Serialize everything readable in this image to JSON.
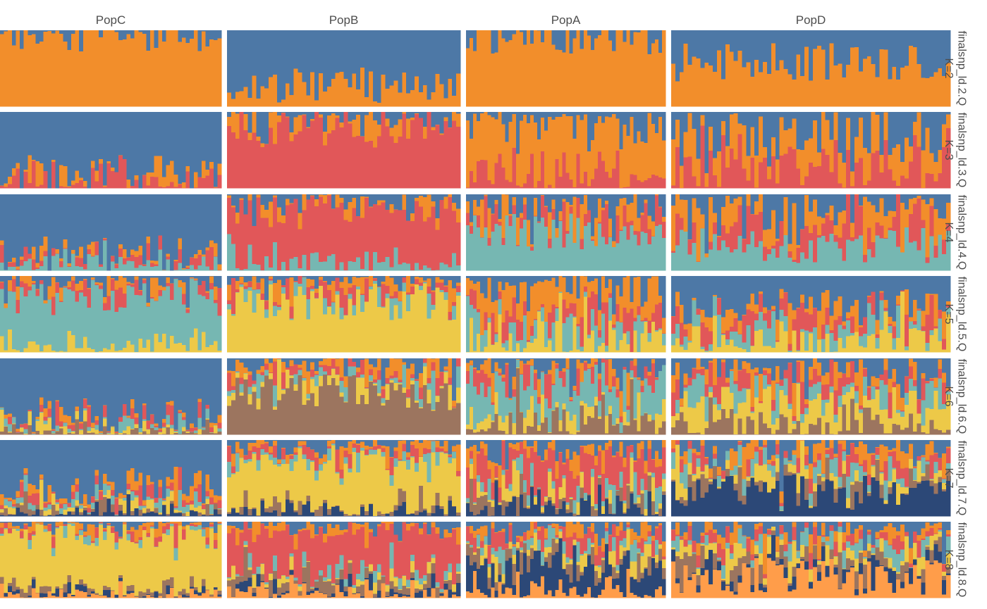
{
  "chart_data": {
    "type": "bar",
    "subtype": "stacked-admixture",
    "populations": [
      "PopC",
      "PopB",
      "PopA",
      "PopD"
    ],
    "individuals_per_population": [
      56,
      56,
      56,
      67
    ],
    "palette": [
      "#4d78a6",
      "#f28e2b",
      "#e15759",
      "#76b7b2",
      "#edc948",
      "#9c755f",
      "#2c4877",
      "#ff9d4a"
    ],
    "rows": [
      {
        "strip_line1": "finalsnp_ld.2.Q",
        "strip_line2": "K=2",
        "K": 2,
        "dominant": [
          [
            1,
            0.93
          ],
          [
            0,
            0.73
          ],
          [
            1,
            0.93
          ],
          [
            1,
            0.58
          ]
        ]
      },
      {
        "strip_line1": "finalsnp_ld.3.Q",
        "strip_line2": "K=3",
        "K": 3,
        "dominant": [
          [
            0,
            0.82
          ],
          [
            2,
            0.78
          ],
          [
            1,
            0.66
          ],
          [
            1,
            0.38
          ]
        ]
      },
      {
        "strip_line1": "finalsnp_ld.4.Q",
        "strip_line2": "K=4",
        "K": 4,
        "dominant": [
          [
            0,
            0.78
          ],
          [
            2,
            0.72
          ],
          [
            3,
            0.5
          ],
          [
            3,
            0.34
          ]
        ]
      },
      {
        "strip_line1": "finalsnp_ld.5.Q",
        "strip_line2": "K=5",
        "K": 5,
        "dominant": [
          [
            3,
            0.68
          ],
          [
            4,
            0.66
          ],
          [
            1,
            0.32
          ],
          [
            0,
            0.42
          ]
        ]
      },
      {
        "strip_line1": "finalsnp_ld.6.Q",
        "strip_line2": "K=6",
        "K": 6,
        "dominant": [
          [
            0,
            0.72
          ],
          [
            5,
            0.56
          ],
          [
            3,
            0.34
          ],
          [
            4,
            0.3
          ]
        ]
      },
      {
        "strip_line1": "finalsnp_ld.7.Q",
        "strip_line2": "K=7",
        "K": 7,
        "dominant": [
          [
            0,
            0.6
          ],
          [
            4,
            0.58
          ],
          [
            2,
            0.34
          ],
          [
            6,
            0.3
          ]
        ]
      },
      {
        "strip_line1": "finalsnp_ld.8.Q",
        "strip_line2": "K=8",
        "K": 8,
        "dominant": [
          [
            4,
            0.7
          ],
          [
            2,
            0.48
          ],
          [
            6,
            0.32
          ],
          [
            7,
            0.28
          ]
        ]
      }
    ]
  }
}
